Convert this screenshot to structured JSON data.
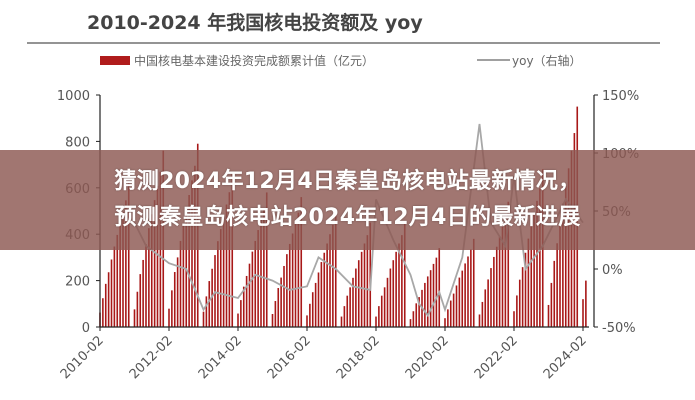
{
  "chart_data": {
    "type": "bar+line",
    "title": "2010-2024 年我国核电投资额及 yoy",
    "legend": [
      {
        "label": "中国核电基本建设投资完成额累计值（亿元）",
        "type": "bar",
        "color": "#b01c1c"
      },
      {
        "label": "yoy（右轴）",
        "type": "line",
        "color": "#a0a0a0"
      }
    ],
    "legend_placement": "top",
    "y_left": {
      "ticks": [
        "0",
        "200",
        "400",
        "600",
        "800",
        "1000"
      ],
      "range": [
        0,
        1000
      ]
    },
    "y_right": {
      "ticks": [
        "-50%",
        "0%",
        "50%",
        "100%",
        "150%"
      ],
      "range": [
        -50,
        150
      ]
    },
    "x_ticks": [
      "2010-02",
      "2012-02",
      "2014-02",
      "2016-02",
      "2018-02",
      "2020-02",
      "2022-02",
      "2024-02"
    ],
    "bar_series": {
      "name": "中国核电基本建设投资完成额累计值（亿元）",
      "months": [
        "02",
        "03",
        "04",
        "05",
        "06",
        "07",
        "08",
        "09",
        "10",
        "11",
        "12"
      ],
      "by_year": {
        "2010": [
          62,
          124,
          186,
          236,
          291,
          347,
          397,
          446,
          496,
          546,
          620
        ],
        "2011": [
          76,
          152,
          228,
          289,
          357,
          426,
          486,
          547,
          608,
          669,
          760
        ],
        "2012": [
          79,
          158,
          237,
          300,
          371,
          442,
          506,
          569,
          632,
          695,
          790
        ],
        "2013": [
          66,
          132,
          198,
          251,
          310,
          370,
          422,
          475,
          528,
          581,
          660
        ],
        "2014": [
          58,
          116,
          174,
          220,
          273,
          325,
          371,
          418,
          464,
          510,
          580
        ],
        "2015": [
          56,
          112,
          168,
          213,
          263,
          314,
          358,
          403,
          448,
          493,
          560
        ],
        "2016": [
          50,
          100,
          150,
          190,
          235,
          280,
          320,
          360,
          400,
          440,
          500
        ],
        "2017": [
          45,
          90,
          135,
          171,
          212,
          252,
          288,
          324,
          360,
          396,
          450
        ],
        "2018": [
          45,
          90,
          135,
          171,
          212,
          252,
          288,
          324,
          360,
          396,
          450
        ],
        "2019": [
          34,
          68,
          102,
          129,
          160,
          190,
          218,
          245,
          272,
          299,
          340
        ],
        "2020": [
          38,
          76,
          114,
          144,
          179,
          213,
          243,
          274,
          304,
          334,
          380
        ],
        "2021": [
          54,
          108,
          162,
          205,
          254,
          302,
          346,
          389,
          432,
          475,
          540
        ],
        "2022": [
          68,
          136,
          204,
          258,
          320,
          381,
          435,
          490,
          544,
          598,
          680
        ],
        "2023": [
          95,
          190,
          285,
          361,
          447,
          532,
          608,
          684,
          760,
          836,
          950
        ],
        "2024": [
          120,
          200
        ]
      }
    },
    "line_series": {
      "name": "yoy（右轴）",
      "points": [
        [
          "2011-02",
          40
        ],
        [
          "2011-06",
          20
        ],
        [
          "2012-02",
          5
        ],
        [
          "2012-08",
          0
        ],
        [
          "2013-02",
          -35
        ],
        [
          "2013-06",
          -20
        ],
        [
          "2014-02",
          -25
        ],
        [
          "2014-08",
          -5
        ],
        [
          "2015-02",
          -10
        ],
        [
          "2015-08",
          -18
        ],
        [
          "2016-02",
          -15
        ],
        [
          "2016-06",
          10
        ],
        [
          "2016-12",
          0
        ],
        [
          "2017-06",
          -15
        ],
        [
          "2017-12",
          -18
        ],
        [
          "2018-02",
          60
        ],
        [
          "2018-08",
          25
        ],
        [
          "2019-02",
          -5
        ],
        [
          "2019-05",
          -30
        ],
        [
          "2019-08",
          -40
        ],
        [
          "2019-12",
          -20
        ],
        [
          "2020-02",
          -35
        ],
        [
          "2020-08",
          10
        ],
        [
          "2021-02",
          125
        ],
        [
          "2021-06",
          40
        ],
        [
          "2021-11",
          20
        ],
        [
          "2022-02",
          80
        ],
        [
          "2022-06",
          0
        ],
        [
          "2022-12",
          20
        ],
        [
          "2023-02",
          30
        ],
        [
          "2023-08",
          60
        ],
        [
          "2024-02",
          40
        ]
      ]
    }
  },
  "banner": {
    "line1": "猜测2024年12月4日秦皇岛核电站最新情况，",
    "line2": "预测秦皇岛核电站2024年12月4日的最新进展"
  }
}
